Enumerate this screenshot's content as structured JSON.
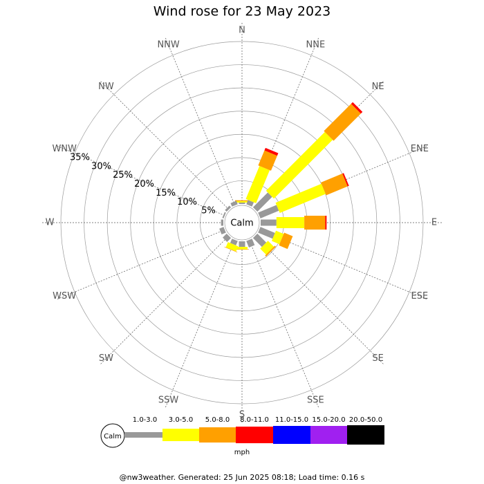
{
  "chart_data": {
    "type": "windrose",
    "title": "Wind rose for 23 May 2023",
    "categories": [
      "N",
      "NNE",
      "NE",
      "ENE",
      "E",
      "ESE",
      "SE",
      "SSE",
      "S",
      "SSW",
      "SW",
      "WSW",
      "W",
      "WNW",
      "NW",
      "NNW"
    ],
    "calm_label": "Calm",
    "rlim": [
      0,
      35
    ],
    "rticks": [
      {
        "value": 5,
        "label": "5%"
      },
      {
        "value": 10,
        "label": "10%"
      },
      {
        "value": 15,
        "label": "15%"
      },
      {
        "value": 20,
        "label": "20%"
      },
      {
        "value": 25,
        "label": "25%"
      },
      {
        "value": 30,
        "label": "30%"
      },
      {
        "value": 35,
        "label": "35%"
      }
    ],
    "legend_unit": "mph",
    "series": [
      {
        "name": "1.0-3.0",
        "color": "#999999",
        "values": [
          0.3,
          1.0,
          4.5,
          4.3,
          3.4,
          3.4,
          2.7,
          1.5,
          1.2,
          1.0,
          1.2,
          1.0,
          0.5,
          0.3,
          0.5,
          0.8
        ]
      },
      {
        "name": "3.0-5.0",
        "color": "#ffff00",
        "values": [
          0.3,
          7.7,
          17.9,
          10.7,
          6.0,
          1.8,
          1.8,
          0,
          0.5,
          1.2,
          0,
          0,
          0,
          0,
          0,
          0
        ]
      },
      {
        "name": "5.0-8.0",
        "color": "#ffa000",
        "values": [
          0.2,
          3.5,
          8.3,
          5.0,
          4.5,
          2.0,
          0.3,
          0,
          0.1,
          0.1,
          0,
          0,
          0,
          0,
          0,
          0
        ]
      },
      {
        "name": "8.0-11.0",
        "color": "#ff0000",
        "values": [
          0,
          0.6,
          0.5,
          0.3,
          0.3,
          0,
          0,
          0,
          0,
          0,
          0,
          0,
          0,
          0,
          0,
          0
        ]
      },
      {
        "name": "11.0-15.0",
        "color": "#0000ff",
        "values": [
          0,
          0,
          0,
          0,
          0,
          0,
          0,
          0,
          0,
          0,
          0,
          0,
          0,
          0,
          0,
          0
        ]
      },
      {
        "name": "15.0-20.0",
        "color": "#a020f0",
        "values": [
          0,
          0,
          0,
          0,
          0,
          0,
          0,
          0,
          0,
          0,
          0,
          0,
          0,
          0,
          0,
          0
        ]
      },
      {
        "name": "20.0-50.0",
        "color": "#000000",
        "values": [
          0,
          0,
          0,
          0,
          0,
          0,
          0,
          0,
          0,
          0,
          0,
          0,
          0,
          0,
          0,
          0
        ]
      }
    ],
    "footer": "@nw3weather. Generated: 25 Jun 2025 08:18; Load time: 0.16 s"
  }
}
